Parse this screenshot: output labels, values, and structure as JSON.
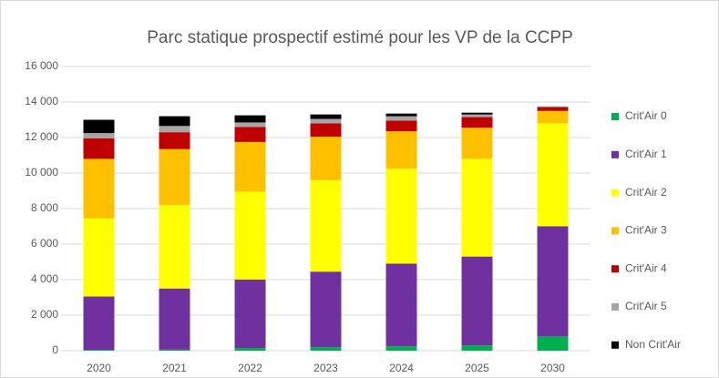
{
  "chart_data": {
    "type": "stacked_bar",
    "title": "Parc statique prospectif estimé pour les VP de la CCPP",
    "categories": [
      "2020",
      "2021",
      "2022",
      "2023",
      "2024",
      "2025",
      "2030"
    ],
    "series": [
      {
        "name": "Crit'Air 0",
        "color": "#00b050",
        "values": [
          50,
          60,
          150,
          200,
          250,
          300,
          800
        ]
      },
      {
        "name": "Crit'Air 1",
        "color": "#7030a0",
        "values": [
          3000,
          3440,
          3850,
          4250,
          4650,
          5000,
          6200
        ]
      },
      {
        "name": "Crit'Air 2",
        "color": "#ffff00",
        "values": [
          4400,
          4700,
          4950,
          5150,
          5350,
          5500,
          5800
        ]
      },
      {
        "name": "Crit'Air 3",
        "color": "#ffc000",
        "values": [
          3350,
          3150,
          2800,
          2450,
          2100,
          1750,
          700
        ]
      },
      {
        "name": "Crit'Air 4",
        "color": "#c00000",
        "values": [
          1150,
          950,
          850,
          750,
          600,
          600,
          200
        ]
      },
      {
        "name": "Crit'Air 5",
        "color": "#a6a6a6",
        "values": [
          300,
          350,
          250,
          250,
          250,
          150,
          30
        ]
      },
      {
        "name": "Non Crit'Air",
        "color": "#000000",
        "values": [
          750,
          550,
          400,
          250,
          150,
          100,
          20
        ]
      }
    ],
    "ylim": [
      0,
      16000
    ],
    "yticks": [
      0,
      {
        "value": 2000,
        "label": "2 000"
      },
      {
        "value": 4000,
        "label": "4 000"
      },
      {
        "value": 6000,
        "label": "6 000"
      },
      {
        "value": 8000,
        "label": "8 000"
      },
      {
        "value": 10000,
        "label": "10 000"
      },
      {
        "value": 12000,
        "label": "12 000"
      },
      {
        "value": 14000,
        "label": "14 000"
      },
      {
        "value": 16000,
        "label": "16 000"
      }
    ],
    "grid": true,
    "legend": "right"
  }
}
